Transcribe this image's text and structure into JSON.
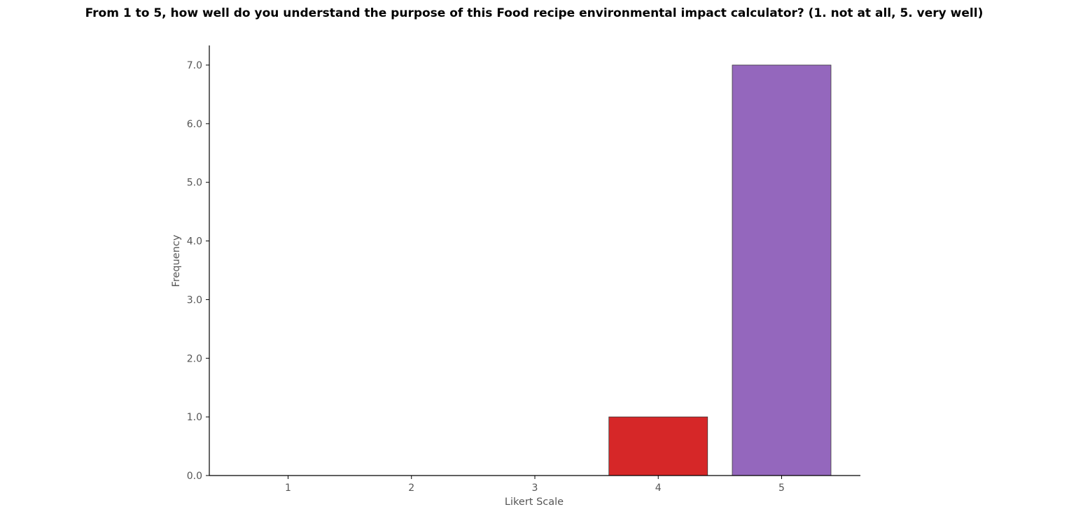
{
  "chart_data": {
    "type": "bar",
    "title": "From 1 to 5, how well do you understand the purpose of this Food recipe environmental impact calculator? (1. not at all, 5. very well)",
    "xlabel": "Likert Scale",
    "ylabel": "Frequency",
    "categories": [
      "1",
      "2",
      "3",
      "4",
      "5"
    ],
    "values": [
      0,
      0,
      0,
      1,
      7
    ],
    "colors": [
      "#1f77b4",
      "#ff7f0e",
      "#2ca02c",
      "#d62728",
      "#9467bd"
    ],
    "ylim": [
      0,
      7.33
    ],
    "yticks": [
      0,
      1,
      2,
      3,
      4,
      5,
      6,
      7
    ],
    "ytick_labels": [
      "0.0",
      "1.0",
      "2.0",
      "3.0",
      "4.0",
      "5.0",
      "6.0",
      "7.0"
    ],
    "grid": false,
    "legend": "none"
  }
}
